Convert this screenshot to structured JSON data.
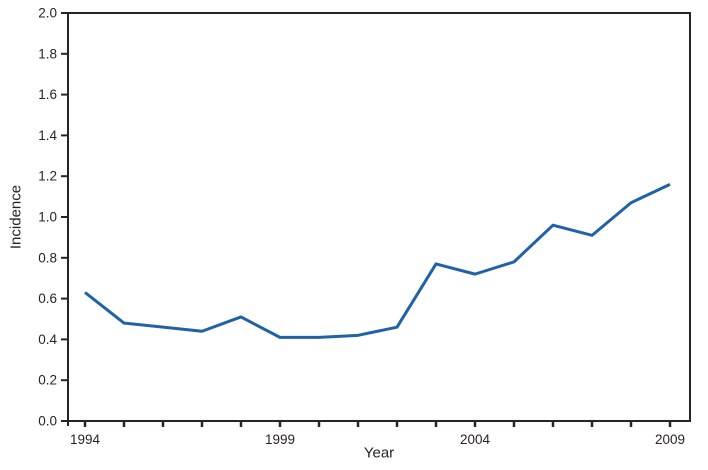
{
  "chart_data": {
    "type": "line",
    "title": "",
    "xlabel": "Year",
    "ylabel": "Incidence",
    "x": [
      1994,
      1995,
      1996,
      1997,
      1998,
      1999,
      2000,
      2001,
      2002,
      2003,
      2004,
      2005,
      2006,
      2007,
      2008,
      2009
    ],
    "series": [
      {
        "name": "Incidence",
        "values": [
          0.63,
          0.48,
          0.46,
          0.44,
          0.51,
          0.41,
          0.41,
          0.42,
          0.46,
          0.77,
          0.72,
          0.78,
          0.96,
          0.91,
          1.07,
          1.16
        ]
      }
    ],
    "xlim": [
      1994,
      2009
    ],
    "ylim": [
      0.0,
      2.0
    ],
    "y_tick_step": 0.2,
    "y_tick_labels": [
      "0.0",
      "0.2",
      "0.4",
      "0.6",
      "0.8",
      "1.0",
      "1.2",
      "1.4",
      "1.6",
      "1.8",
      "2.0"
    ],
    "x_tick_step": 1,
    "x_labeled_ticks": [
      "1994",
      "1999",
      "2004",
      "2009"
    ],
    "grid": false,
    "legend": "none",
    "frame": "full-box",
    "line_color": "#2161a8",
    "axis_color": "#282425",
    "background_color": "#ffffff"
  }
}
